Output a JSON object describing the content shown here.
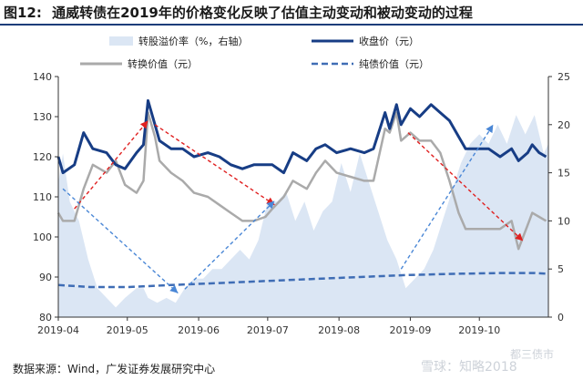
{
  "figure": {
    "number": "图12:",
    "title": "通威转债在2019年的价格变化反映了估值主动变动和被动变动的过程"
  },
  "source": {
    "label": "数据来源：",
    "text": "Wind，广发证券发展研究中心"
  },
  "watermarks": [
    "雪球：知略2018",
    "都三债市"
  ],
  "chart_data": {
    "type": "line",
    "x_labels": [
      "2019-04",
      "2019-05",
      "2019-06",
      "2019-07",
      "2019-08",
      "2019-09",
      "2019-10"
    ],
    "x_range": [
      "2019-04-01",
      "2019-10-31"
    ],
    "left_axis": {
      "ticks": [
        80,
        90,
        100,
        110,
        120,
        130,
        140
      ],
      "ylim": [
        80,
        140
      ]
    },
    "right_axis": {
      "ticks": [
        0,
        5,
        10,
        15,
        20,
        25
      ],
      "ylim": [
        0,
        25
      ]
    },
    "legend": {
      "premium": "转股溢价率（%，右轴）",
      "close": "收盘价（元）",
      "conversion": "转换价值（元）",
      "bond": "纯债价值（元）"
    },
    "series": {
      "close": {
        "name": "收盘价（元）",
        "axis": "left",
        "color": "#173d85",
        "points": [
          [
            "2019-04-01",
            120
          ],
          [
            "2019-04-03",
            116
          ],
          [
            "2019-04-08",
            118
          ],
          [
            "2019-04-12",
            126
          ],
          [
            "2019-04-16",
            122
          ],
          [
            "2019-04-22",
            121
          ],
          [
            "2019-04-26",
            118
          ],
          [
            "2019-04-30",
            117
          ],
          [
            "2019-05-05",
            121
          ],
          [
            "2019-05-08",
            123
          ],
          [
            "2019-05-10",
            134
          ],
          [
            "2019-05-13",
            128
          ],
          [
            "2019-05-15",
            124
          ],
          [
            "2019-05-20",
            122
          ],
          [
            "2019-05-25",
            122
          ],
          [
            "2019-05-30",
            120
          ],
          [
            "2019-06-05",
            121
          ],
          [
            "2019-06-10",
            120
          ],
          [
            "2019-06-15",
            118
          ],
          [
            "2019-06-20",
            117
          ],
          [
            "2019-06-25",
            118
          ],
          [
            "2019-06-30",
            118
          ],
          [
            "2019-07-03",
            118
          ],
          [
            "2019-07-08",
            116
          ],
          [
            "2019-07-12",
            121
          ],
          [
            "2019-07-18",
            119
          ],
          [
            "2019-07-22",
            122
          ],
          [
            "2019-07-26",
            123
          ],
          [
            "2019-07-31",
            121
          ],
          [
            "2019-08-06",
            122
          ],
          [
            "2019-08-12",
            121
          ],
          [
            "2019-08-16",
            122
          ],
          [
            "2019-08-21",
            131
          ],
          [
            "2019-08-23",
            127
          ],
          [
            "2019-08-26",
            133
          ],
          [
            "2019-08-28",
            128
          ],
          [
            "2019-09-01",
            132
          ],
          [
            "2019-09-05",
            130
          ],
          [
            "2019-09-10",
            133
          ],
          [
            "2019-09-14",
            131
          ],
          [
            "2019-09-18",
            129
          ],
          [
            "2019-09-22",
            125
          ],
          [
            "2019-09-25",
            122
          ],
          [
            "2019-09-30",
            122
          ],
          [
            "2019-10-05",
            122
          ],
          [
            "2019-10-10",
            120
          ],
          [
            "2019-10-15",
            122
          ],
          [
            "2019-10-18",
            119
          ],
          [
            "2019-10-22",
            121
          ],
          [
            "2019-10-24",
            123
          ],
          [
            "2019-10-27",
            121
          ],
          [
            "2019-10-30",
            120
          ]
        ]
      },
      "conversion": {
        "name": "转换价值（元）",
        "axis": "left",
        "color": "#aaaaaa",
        "points": [
          [
            "2019-04-01",
            106
          ],
          [
            "2019-04-03",
            104
          ],
          [
            "2019-04-08",
            104
          ],
          [
            "2019-04-12",
            112
          ],
          [
            "2019-04-16",
            118
          ],
          [
            "2019-04-22",
            116
          ],
          [
            "2019-04-26",
            119
          ],
          [
            "2019-04-30",
            113
          ],
          [
            "2019-05-05",
            111
          ],
          [
            "2019-05-08",
            114
          ],
          [
            "2019-05-10",
            131
          ],
          [
            "2019-05-13",
            125
          ],
          [
            "2019-05-15",
            119
          ],
          [
            "2019-05-20",
            116
          ],
          [
            "2019-05-25",
            114
          ],
          [
            "2019-05-30",
            111
          ],
          [
            "2019-06-05",
            110
          ],
          [
            "2019-06-10",
            108
          ],
          [
            "2019-06-15",
            106
          ],
          [
            "2019-06-20",
            104
          ],
          [
            "2019-06-25",
            104
          ],
          [
            "2019-06-30",
            105
          ],
          [
            "2019-07-03",
            107
          ],
          [
            "2019-07-08",
            110
          ],
          [
            "2019-07-12",
            114
          ],
          [
            "2019-07-18",
            112
          ],
          [
            "2019-07-22",
            116
          ],
          [
            "2019-07-26",
            119
          ],
          [
            "2019-07-31",
            116
          ],
          [
            "2019-08-06",
            115
          ],
          [
            "2019-08-12",
            114
          ],
          [
            "2019-08-16",
            114
          ],
          [
            "2019-08-21",
            127
          ],
          [
            "2019-08-23",
            126
          ],
          [
            "2019-08-26",
            131
          ],
          [
            "2019-08-28",
            124
          ],
          [
            "2019-09-01",
            126
          ],
          [
            "2019-09-05",
            124
          ],
          [
            "2019-09-10",
            124
          ],
          [
            "2019-09-14",
            121
          ],
          [
            "2019-09-18",
            114
          ],
          [
            "2019-09-22",
            106
          ],
          [
            "2019-09-25",
            102
          ],
          [
            "2019-09-30",
            102
          ],
          [
            "2019-10-05",
            102
          ],
          [
            "2019-10-10",
            102
          ],
          [
            "2019-10-15",
            104
          ],
          [
            "2019-10-18",
            97
          ],
          [
            "2019-10-22",
            103
          ],
          [
            "2019-10-24",
            106
          ],
          [
            "2019-10-27",
            105
          ],
          [
            "2019-10-30",
            104
          ]
        ]
      },
      "bond": {
        "name": "纯债价值（元）",
        "axis": "left",
        "color": "#3f6db5",
        "style": "dashed",
        "points": [
          [
            "2019-04-01",
            88
          ],
          [
            "2019-04-15",
            87.5
          ],
          [
            "2019-05-01",
            87.5
          ],
          [
            "2019-05-20",
            88
          ],
          [
            "2019-06-10",
            88.5
          ],
          [
            "2019-06-30",
            89
          ],
          [
            "2019-07-20",
            89.5
          ],
          [
            "2019-08-10",
            90
          ],
          [
            "2019-08-31",
            90.5
          ],
          [
            "2019-09-20",
            90.8
          ],
          [
            "2019-10-10",
            91
          ],
          [
            "2019-10-25",
            91
          ],
          [
            "2019-10-31",
            90.8
          ]
        ]
      },
      "premium": {
        "name": "转股溢价率（%，右轴）",
        "axis": "right",
        "color": "#dbe6f4",
        "type": "area",
        "points": [
          [
            "2019-04-01",
            14
          ],
          [
            "2019-04-03",
            17
          ],
          [
            "2019-04-06",
            12
          ],
          [
            "2019-04-10",
            10
          ],
          [
            "2019-04-14",
            6
          ],
          [
            "2019-04-18",
            3
          ],
          [
            "2019-04-22",
            2
          ],
          [
            "2019-04-26",
            1
          ],
          [
            "2019-04-30",
            2
          ],
          [
            "2019-05-05",
            3
          ],
          [
            "2019-05-08",
            3
          ],
          [
            "2019-05-10",
            2
          ],
          [
            "2019-05-14",
            1.5
          ],
          [
            "2019-05-18",
            2
          ],
          [
            "2019-05-22",
            1.5
          ],
          [
            "2019-05-26",
            3
          ],
          [
            "2019-05-30",
            4
          ],
          [
            "2019-06-03",
            4
          ],
          [
            "2019-06-07",
            5
          ],
          [
            "2019-06-11",
            5
          ],
          [
            "2019-06-15",
            6
          ],
          [
            "2019-06-19",
            7
          ],
          [
            "2019-06-23",
            6
          ],
          [
            "2019-06-27",
            8
          ],
          [
            "2019-07-01",
            12
          ],
          [
            "2019-07-05",
            12
          ],
          [
            "2019-07-09",
            13
          ],
          [
            "2019-07-13",
            10
          ],
          [
            "2019-07-17",
            12
          ],
          [
            "2019-07-21",
            9
          ],
          [
            "2019-07-25",
            11
          ],
          [
            "2019-07-29",
            12
          ],
          [
            "2019-08-02",
            16
          ],
          [
            "2019-08-06",
            13
          ],
          [
            "2019-08-10",
            17
          ],
          [
            "2019-08-14",
            14
          ],
          [
            "2019-08-18",
            11
          ],
          [
            "2019-08-22",
            8
          ],
          [
            "2019-08-26",
            6
          ],
          [
            "2019-08-30",
            3
          ],
          [
            "2019-09-03",
            4
          ],
          [
            "2019-09-07",
            5
          ],
          [
            "2019-09-11",
            7
          ],
          [
            "2019-09-15",
            10
          ],
          [
            "2019-09-19",
            13
          ],
          [
            "2019-09-23",
            16
          ],
          [
            "2019-09-27",
            18
          ],
          [
            "2019-10-01",
            19
          ],
          [
            "2019-10-05",
            18
          ],
          [
            "2019-10-09",
            20
          ],
          [
            "2019-10-13",
            18
          ],
          [
            "2019-10-17",
            21
          ],
          [
            "2019-10-21",
            19
          ],
          [
            "2019-10-25",
            21
          ],
          [
            "2019-10-29",
            17
          ],
          [
            "2019-10-31",
            18
          ]
        ]
      }
    },
    "annotations": [
      {
        "style": "red-dashed-arrow",
        "from": [
          "2019-04-08",
          107
        ],
        "to": [
          "2019-05-10",
          129
        ]
      },
      {
        "style": "red-dashed-arrow",
        "from": [
          "2019-05-13",
          128
        ],
        "to": [
          "2019-07-04",
          108
        ]
      },
      {
        "style": "red-dashed-arrow",
        "from": [
          "2019-08-31",
          126
        ],
        "to": [
          "2019-10-20",
          99
        ]
      },
      {
        "style": "blue-dashed-arrow",
        "from": [
          "2019-04-03",
          112
        ],
        "to": [
          "2019-05-23",
          86
        ]
      },
      {
        "style": "blue-dashed-arrow",
        "from": [
          "2019-05-26",
          87
        ],
        "to": [
          "2019-07-04",
          109
        ]
      },
      {
        "style": "blue-dashed-arrow",
        "from": [
          "2019-08-28",
          92
        ],
        "to": [
          "2019-10-07",
          128
        ]
      }
    ]
  }
}
